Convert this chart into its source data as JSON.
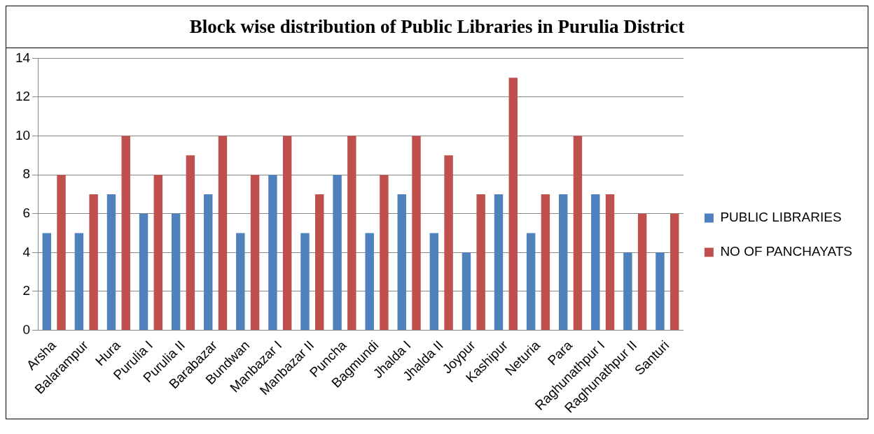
{
  "chart_data": {
    "type": "bar",
    "title": "Block wise distribution of Public Libraries in Purulia District",
    "categories": [
      "Arsha",
      "Balarampur",
      "Hura",
      "Purulia I",
      "Purulia II",
      "Barabazar",
      "Bundwan",
      "Manbazar I",
      "Manbazar II",
      "Puncha",
      "Bagmundi",
      "Jhalda I",
      "Jhalda II",
      "Joypur",
      "Kashipur",
      "Neturia",
      "Para",
      "Raghunathpur I",
      "Raghunathpur II",
      "Santuri"
    ],
    "series": [
      {
        "name": "PUBLIC LIBRARIES",
        "color": "#4f81bd",
        "values": [
          5,
          5,
          7,
          6,
          6,
          7,
          5,
          8,
          5,
          8,
          5,
          7,
          5,
          4,
          7,
          5,
          7,
          7,
          4,
          4
        ]
      },
      {
        "name": "NO OF PANCHAYATS",
        "color": "#c0504d",
        "values": [
          8,
          7,
          10,
          8,
          9,
          10,
          8,
          10,
          7,
          10,
          8,
          10,
          9,
          7,
          13,
          7,
          10,
          7,
          6,
          6
        ]
      }
    ],
    "ylim": [
      0,
      14
    ],
    "yticks": [
      0,
      2,
      4,
      6,
      8,
      10,
      12,
      14
    ],
    "grid": "y",
    "legend": "right"
  }
}
